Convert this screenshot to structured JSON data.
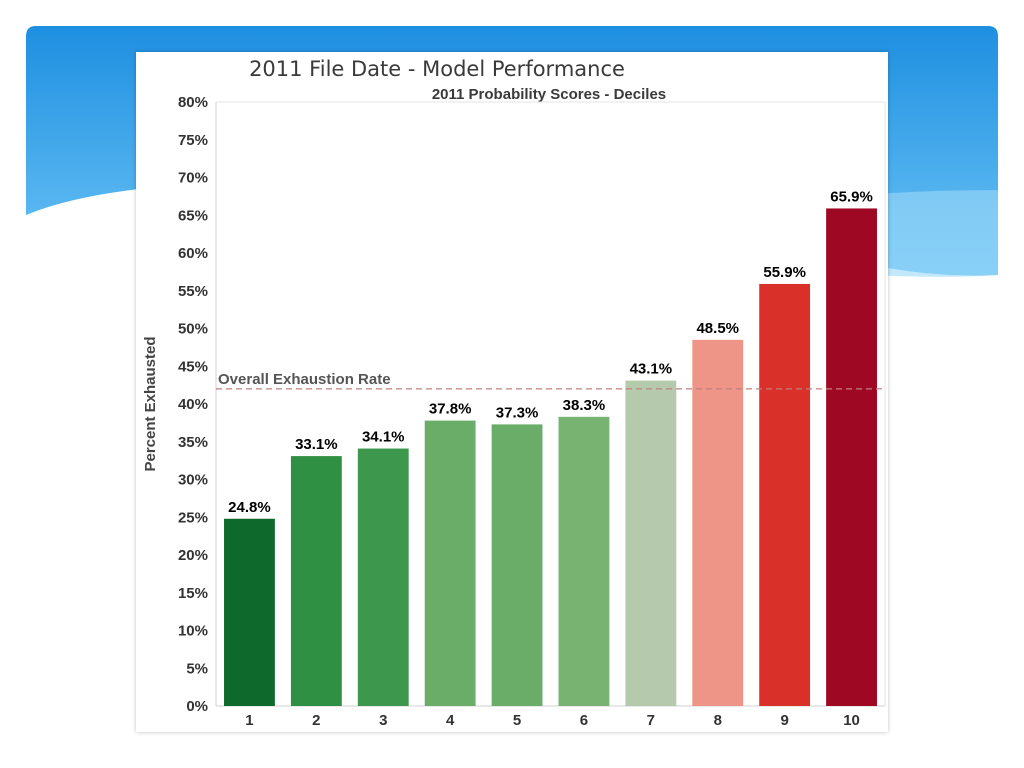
{
  "chart_data": {
    "type": "bar",
    "title": "2011 File Date - Model Performance",
    "subtitle": "2011 Probability Scores - Deciles",
    "xlabel": "",
    "ylabel": "Percent Exhausted",
    "categories": [
      "1",
      "2",
      "3",
      "4",
      "5",
      "6",
      "7",
      "8",
      "9",
      "10"
    ],
    "values": [
      24.8,
      33.1,
      34.1,
      37.8,
      37.3,
      38.3,
      43.1,
      48.5,
      55.9,
      65.9
    ],
    "data_labels": [
      "24.8%",
      "33.1%",
      "34.1%",
      "37.8%",
      "37.3%",
      "38.3%",
      "43.1%",
      "48.5%",
      "55.9%",
      "65.9%"
    ],
    "bar_colors": [
      "#0d6a2c",
      "#2f8f42",
      "#3d974c",
      "#6aad68",
      "#6aad68",
      "#78b372",
      "#b5c9ac",
      "#ee9588",
      "#d9302a",
      "#9e0822"
    ],
    "ylim": [
      0,
      80
    ],
    "y_ticks": [
      0,
      5,
      10,
      15,
      20,
      25,
      30,
      35,
      40,
      45,
      50,
      55,
      60,
      65,
      70,
      75,
      80
    ],
    "y_tick_labels": [
      "0%",
      "5%",
      "10%",
      "15%",
      "20%",
      "25%",
      "30%",
      "35%",
      "40%",
      "45%",
      "50%",
      "55%",
      "60%",
      "65%",
      "70%",
      "75%",
      "80%"
    ],
    "reference_line": {
      "label": "Overall Exhaustion Rate",
      "value": 42,
      "color": "#c08080",
      "style": "dashed"
    },
    "grid": false,
    "legend": "none"
  }
}
